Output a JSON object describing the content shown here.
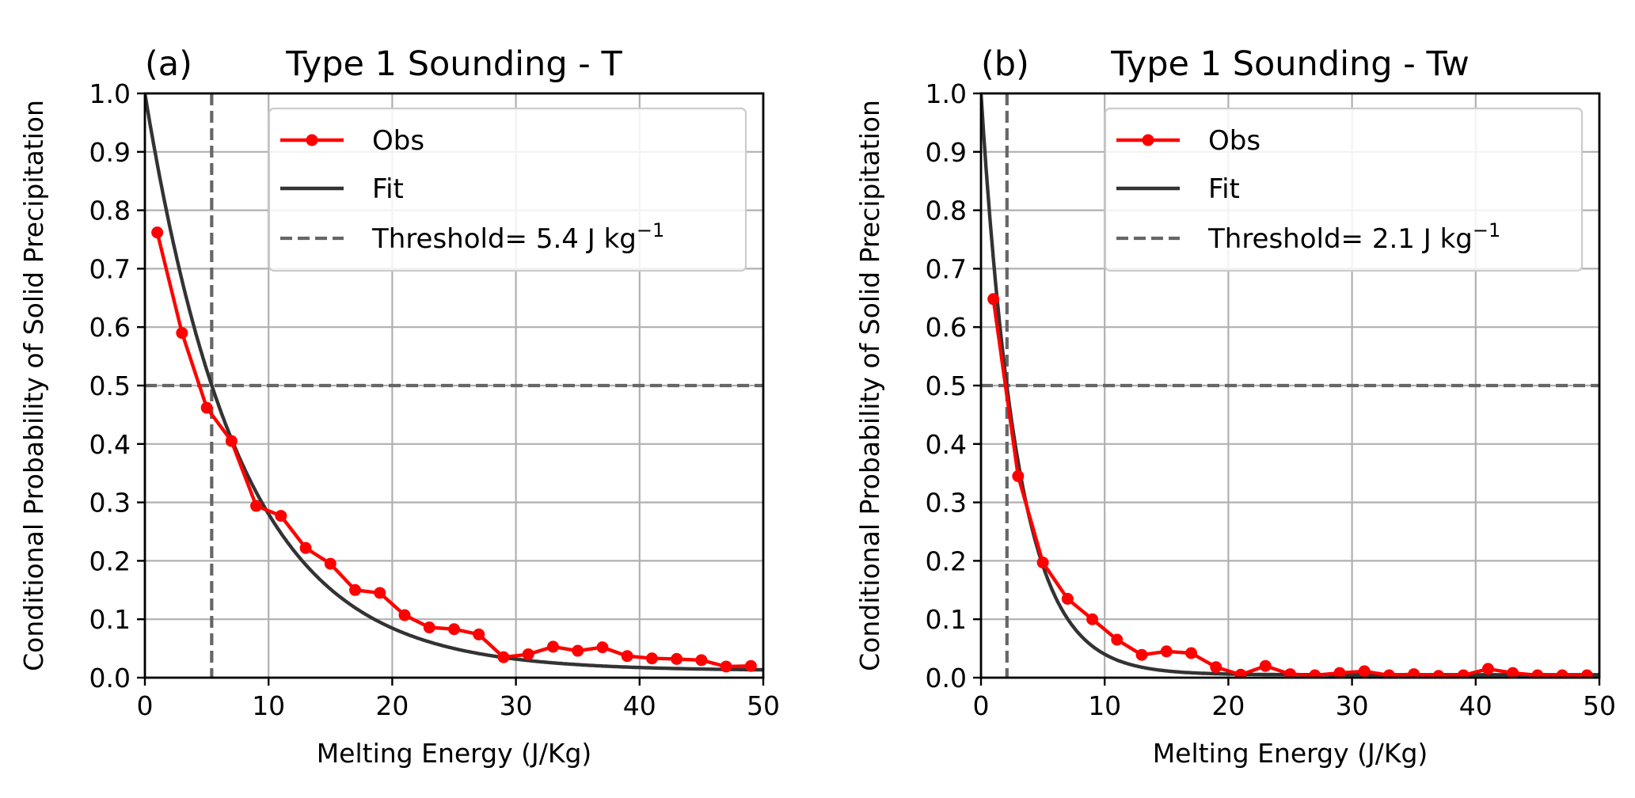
{
  "chart_data": [
    {
      "type": "line",
      "panel_label": "(a)",
      "title": "Type 1 Sounding - T",
      "xlabel": "Melting Energy (J/Kg)",
      "ylabel": "Conditional Probability of Solid Precipitation",
      "xlim": [
        0,
        50
      ],
      "ylim": [
        0,
        1
      ],
      "x_ticks": [
        0,
        10,
        20,
        30,
        40,
        50
      ],
      "x_tick_labels": [
        "0",
        "10",
        "20",
        "30",
        "40",
        "50"
      ],
      "y_ticks": [
        0,
        0.1,
        0.2,
        0.3,
        0.4,
        0.5,
        0.6,
        0.7,
        0.8,
        0.9,
        1.0
      ],
      "y_tick_labels": [
        "0.0",
        "0.1",
        "0.2",
        "0.3",
        "0.4",
        "0.5",
        "0.6",
        "0.7",
        "0.8",
        "0.9",
        "1.0"
      ],
      "grid": true,
      "legend_position": "upper-right",
      "legend": {
        "obs": "Obs",
        "fit": "Fit",
        "threshold_prefix": "Threshold= 5.4 J kg",
        "threshold_sup": "−1"
      },
      "series": [
        {
          "name": "Obs",
          "color": "#ff0000",
          "marker": "circle",
          "x": [
            1,
            3,
            5,
            7,
            9,
            11,
            13,
            15,
            17,
            19,
            21,
            23,
            25,
            27,
            29,
            31,
            33,
            35,
            37,
            39,
            41,
            43,
            45,
            47,
            49
          ],
          "y": [
            0.762,
            0.59,
            0.462,
            0.405,
            0.294,
            0.277,
            0.222,
            0.195,
            0.15,
            0.145,
            0.107,
            0.086,
            0.083,
            0.074,
            0.035,
            0.04,
            0.053,
            0.046,
            0.052,
            0.037,
            0.033,
            0.032,
            0.03,
            0.019,
            0.02
          ]
        },
        {
          "name": "Fit",
          "color": "#333333",
          "model": "exponential",
          "y_at_0": 1.0,
          "floor": 0.012,
          "rate": 0.1304
        }
      ],
      "reference_lines": {
        "horizontal_y": 0.5,
        "vertical_x": 5.4,
        "color": "#666666"
      }
    },
    {
      "type": "line",
      "panel_label": "(b)",
      "title": "Type 1 Sounding - Tw",
      "xlabel": "Melting Energy (J/Kg)",
      "ylabel": "Conditional Probability of Solid Precipitation",
      "xlim": [
        0,
        50
      ],
      "ylim": [
        0,
        1
      ],
      "x_ticks": [
        0,
        10,
        20,
        30,
        40,
        50
      ],
      "x_tick_labels": [
        "0",
        "10",
        "20",
        "30",
        "40",
        "50"
      ],
      "y_ticks": [
        0,
        0.1,
        0.2,
        0.3,
        0.4,
        0.5,
        0.6,
        0.7,
        0.8,
        0.9,
        1.0
      ],
      "y_tick_labels": [
        "0.0",
        "0.1",
        "0.2",
        "0.3",
        "0.4",
        "0.5",
        "0.6",
        "0.7",
        "0.8",
        "0.9",
        "1.0"
      ],
      "grid": true,
      "legend_position": "upper-right",
      "legend": {
        "obs": "Obs",
        "fit": "Fit",
        "threshold_prefix": "Threshold= 2.1 J kg",
        "threshold_sup": "−1"
      },
      "series": [
        {
          "name": "Obs",
          "color": "#ff0000",
          "marker": "circle",
          "x": [
            1,
            3,
            5,
            7,
            9,
            11,
            13,
            15,
            17,
            19,
            21,
            23,
            25,
            27,
            29,
            31,
            33,
            35,
            37,
            39,
            41,
            43,
            45,
            47,
            49
          ],
          "y": [
            0.648,
            0.345,
            0.197,
            0.135,
            0.1,
            0.065,
            0.039,
            0.045,
            0.042,
            0.018,
            0.005,
            0.02,
            0.006,
            0.004,
            0.008,
            0.011,
            0.004,
            0.006,
            0.003,
            0.004,
            0.015,
            0.008,
            0.004,
            0.004,
            0.004
          ]
        },
        {
          "name": "Fit",
          "color": "#333333",
          "model": "exponential",
          "y_at_0": 1.0,
          "floor": 0.005,
          "rate": 0.3344
        }
      ],
      "reference_lines": {
        "horizontal_y": 0.5,
        "vertical_x": 2.1,
        "color": "#666666"
      }
    }
  ]
}
